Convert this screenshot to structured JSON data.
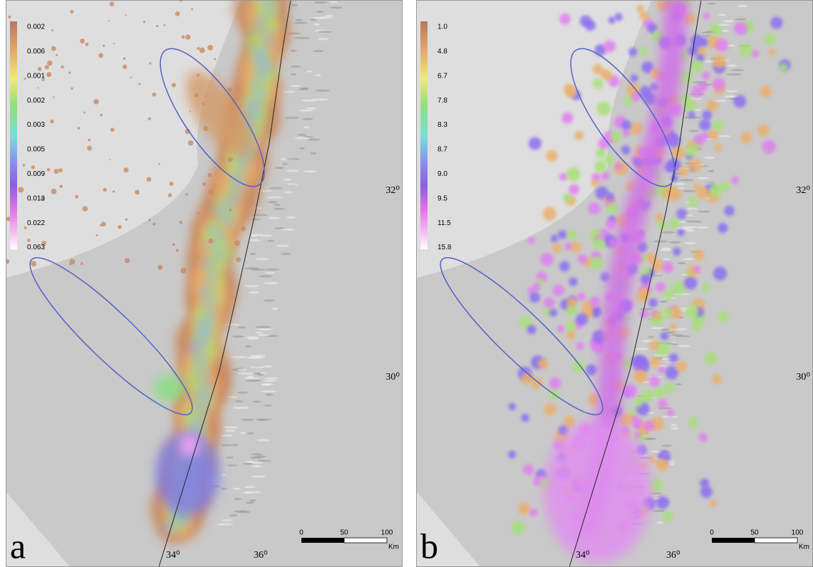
{
  "panels": [
    {
      "letter": "a",
      "legend": {
        "labels": [
          "0.002",
          "0.006",
          "0.001",
          "0.002",
          "0.003",
          "0.005",
          "0.009",
          "0.013",
          "0.022",
          "0.063"
        ]
      },
      "latitude_labels": [
        "32⁰",
        "30⁰"
      ],
      "longitude_labels": [
        "34⁰",
        "36⁰"
      ],
      "scale_bar": {
        "ticks": [
          "0",
          "50",
          "100"
        ],
        "unit": "Km"
      }
    },
    {
      "letter": "b",
      "legend": {
        "labels": [
          "1.0",
          "4.8",
          "6.7",
          "7.8",
          "8.3",
          "8.7",
          "9.0",
          "9.5",
          "11.5",
          "15.8"
        ]
      },
      "latitude_labels": [
        "32⁰",
        "30⁰"
      ],
      "longitude_labels": [
        "34⁰",
        "36⁰"
      ],
      "scale_bar": {
        "ticks": [
          "0",
          "50",
          "100"
        ],
        "unit": "Km"
      }
    }
  ]
}
